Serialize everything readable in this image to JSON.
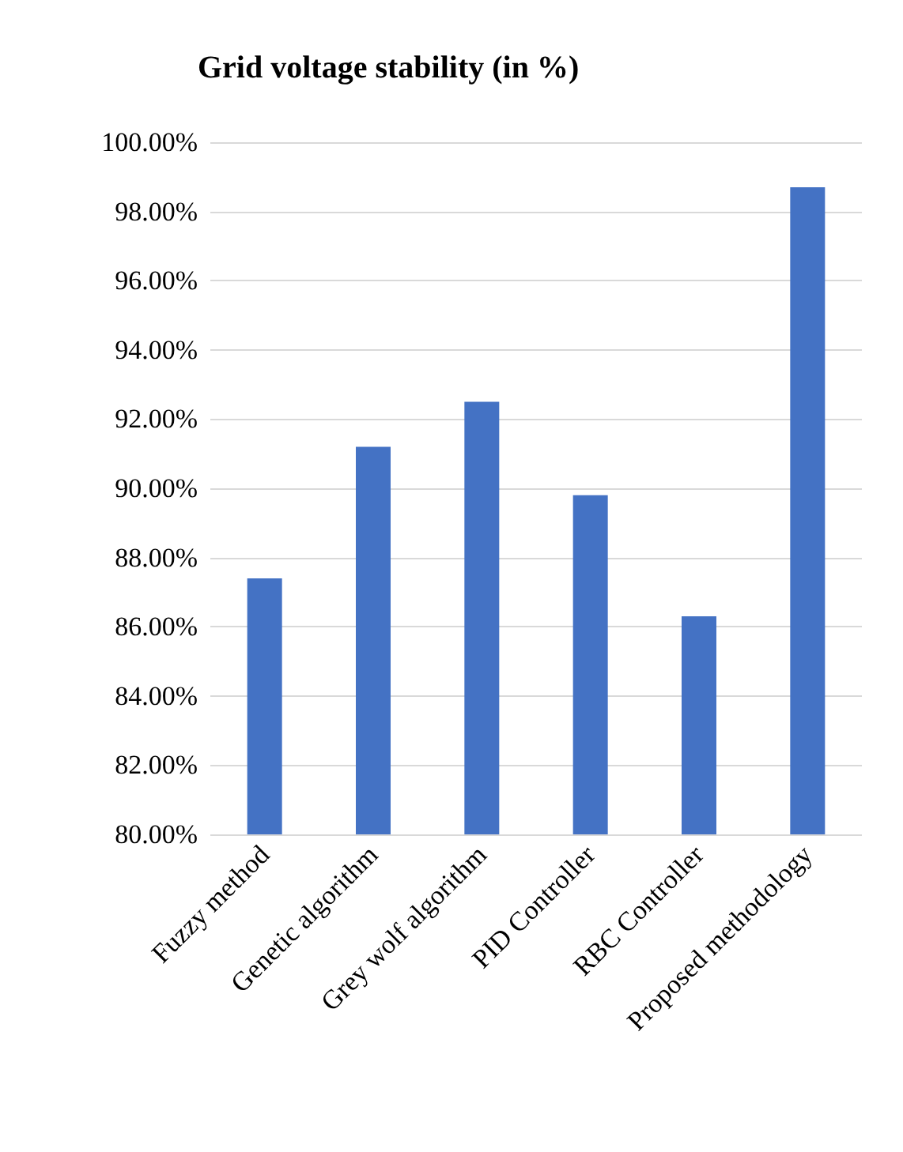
{
  "chart_data": {
    "type": "bar",
    "title": "Grid voltage stability (in %)",
    "categories": [
      "Fuzzy method",
      "Genetic algorithm",
      "Grey wolf algorithm",
      "PID Controller",
      "RBC Controller",
      "Proposed methodology"
    ],
    "values": [
      87.4,
      91.2,
      92.5,
      89.8,
      86.3,
      98.7
    ],
    "color": "#4472c4",
    "ylim": [
      80,
      100
    ],
    "yticks": [
      {
        "value": 80,
        "label": "80.00%"
      },
      {
        "value": 82,
        "label": "82.00%"
      },
      {
        "value": 84,
        "label": "84.00%"
      },
      {
        "value": 86,
        "label": "86.00%"
      },
      {
        "value": 88,
        "label": "88.00%"
      },
      {
        "value": 90,
        "label": "90.00%"
      },
      {
        "value": 92,
        "label": "92.00%"
      },
      {
        "value": 94,
        "label": "94.00%"
      },
      {
        "value": 96,
        "label": "96.00%"
      },
      {
        "value": 98,
        "label": "98.00%"
      },
      {
        "value": 100,
        "label": "100.00%"
      }
    ],
    "grid": "y"
  }
}
